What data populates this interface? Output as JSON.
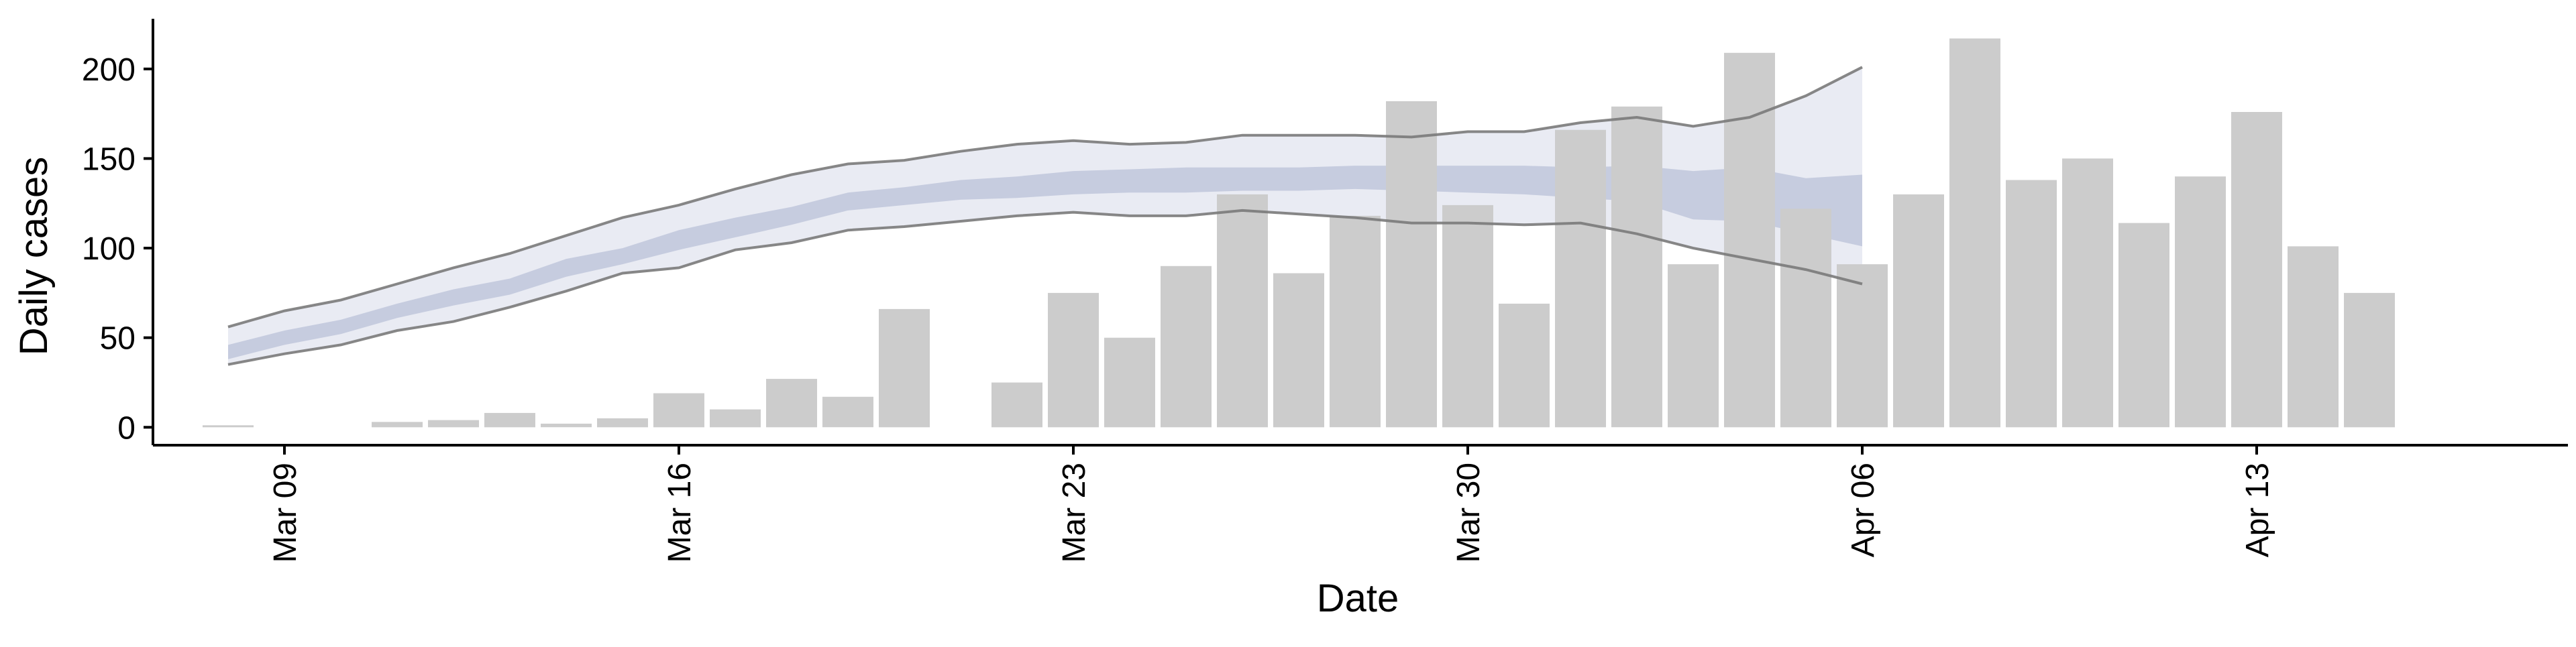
{
  "chart_data": {
    "type": "bar",
    "xlabel": "Date",
    "ylabel": "Daily cases",
    "ylim": [
      -10,
      228
    ],
    "yticks": [
      0,
      50,
      100,
      150,
      200
    ],
    "grid": false,
    "legend": "none",
    "x_date_start": "Mar 08",
    "x_date_end": "Apr 15",
    "xticks": [
      {
        "date": "Mar 09",
        "label": "Mar 09"
      },
      {
        "date": "Mar 16",
        "label": "Mar 16"
      },
      {
        "date": "Mar 23",
        "label": "Mar 23"
      },
      {
        "date": "Mar 30",
        "label": "Mar 30"
      },
      {
        "date": "Apr 06",
        "label": "Apr 06"
      },
      {
        "date": "Apr 13",
        "label": "Apr 13"
      }
    ],
    "colors": {
      "bars": "#cccccc",
      "band_outer": "#e9ebf3",
      "band_inner": "#c6ccdf",
      "band_lines": "#7a7a7a"
    },
    "bars": {
      "dates": [
        "Mar 08",
        "Mar 09",
        "Mar 10",
        "Mar 11",
        "Mar 12",
        "Mar 13",
        "Mar 14",
        "Mar 15",
        "Mar 16",
        "Mar 17",
        "Mar 18",
        "Mar 19",
        "Mar 20",
        "Mar 21",
        "Mar 22",
        "Mar 23",
        "Mar 24",
        "Mar 25",
        "Mar 26",
        "Mar 27",
        "Mar 28",
        "Mar 29",
        "Mar 30",
        "Mar 31",
        "Apr 01",
        "Apr 02",
        "Apr 03",
        "Apr 04",
        "Apr 05",
        "Apr 06",
        "Apr 07",
        "Apr 08",
        "Apr 09",
        "Apr 10",
        "Apr 11",
        "Apr 12",
        "Apr 13",
        "Apr 14",
        "Apr 15"
      ],
      "values": [
        1,
        0,
        0,
        3,
        4,
        8,
        2,
        5,
        19,
        10,
        27,
        17,
        66,
        0,
        25,
        75,
        50,
        90,
        130,
        86,
        118,
        182,
        124,
        69,
        166,
        179,
        91,
        209,
        122,
        91,
        130,
        217,
        138,
        150,
        114,
        140,
        176,
        101,
        75
      ]
    },
    "projection": {
      "dates": [
        "Mar 08",
        "Mar 09",
        "Mar 10",
        "Mar 11",
        "Mar 12",
        "Mar 13",
        "Mar 14",
        "Mar 15",
        "Mar 16",
        "Mar 17",
        "Mar 18",
        "Mar 19",
        "Mar 20",
        "Mar 21",
        "Mar 22",
        "Mar 23",
        "Mar 24",
        "Mar 25",
        "Mar 26",
        "Mar 27",
        "Mar 28",
        "Mar 29",
        "Mar 30",
        "Mar 31",
        "Apr 01",
        "Apr 02",
        "Apr 03",
        "Apr 04",
        "Apr 05",
        "Apr 06"
      ],
      "upper_outer": [
        56,
        65,
        71,
        80,
        89,
        97,
        107,
        117,
        124,
        133,
        141,
        147,
        149,
        154,
        158,
        160,
        158,
        159,
        163,
        163,
        163,
        162,
        165,
        165,
        170,
        173,
        168,
        173,
        185,
        201
      ],
      "lower_outer": [
        35,
        41,
        46,
        54,
        59,
        67,
        76,
        86,
        89,
        99,
        103,
        110,
        112,
        115,
        118,
        120,
        118,
        118,
        121,
        119,
        117,
        114,
        114,
        113,
        114,
        108,
        100,
        94,
        88,
        80
      ],
      "upper_inner": [
        46,
        54,
        60,
        69,
        77,
        83,
        94,
        100,
        110,
        117,
        123,
        131,
        134,
        138,
        140,
        143,
        144,
        145,
        145,
        145,
        146,
        146,
        146,
        146,
        145,
        146,
        143,
        145,
        139,
        141
      ],
      "lower_inner": [
        38,
        46,
        52,
        61,
        68,
        74,
        84,
        91,
        99,
        106,
        113,
        121,
        124,
        127,
        128,
        130,
        131,
        131,
        132,
        132,
        133,
        132,
        131,
        130,
        128,
        126,
        116,
        115,
        108,
        101
      ]
    }
  }
}
